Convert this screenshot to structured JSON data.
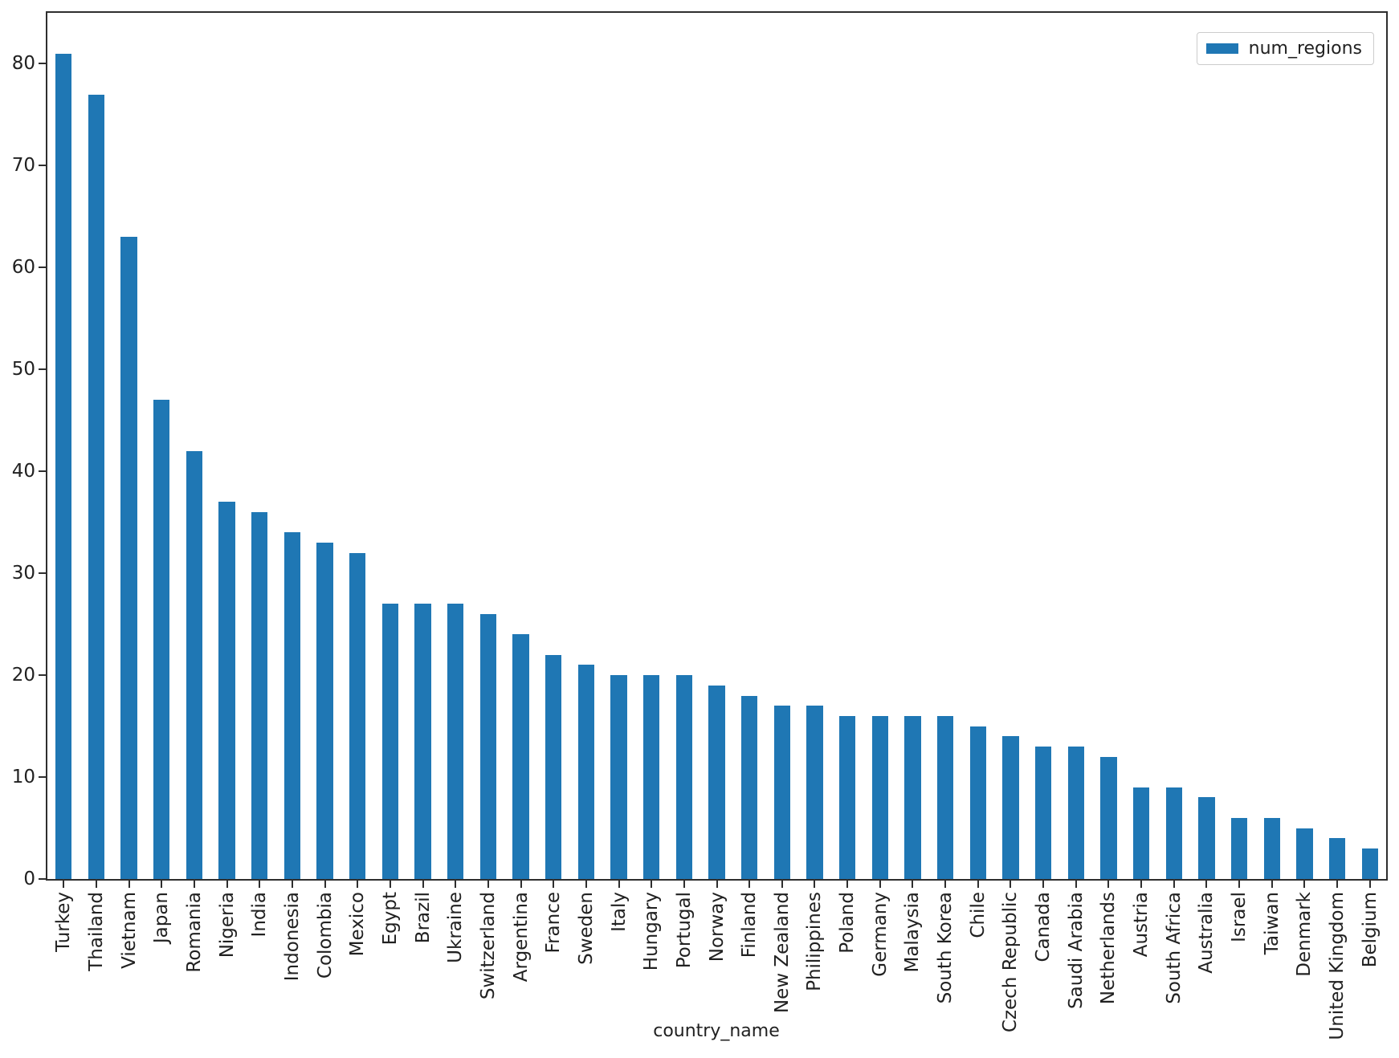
{
  "chart_data": {
    "type": "bar",
    "title": "",
    "xlabel": "country_name",
    "ylabel": "",
    "legend": {
      "label": "num_regions",
      "position": "upper right"
    },
    "colors": {
      "bar": "#1f77b4",
      "axis": "#2e2e2e",
      "text": "#212121",
      "legend_border": "#cccccc"
    },
    "ylim": [
      0,
      85
    ],
    "yticks": [
      0,
      10,
      20,
      30,
      40,
      50,
      60,
      70,
      80
    ],
    "grid": false,
    "categories": [
      "Turkey",
      "Thailand",
      "Vietnam",
      "Japan",
      "Romania",
      "Nigeria",
      "India",
      "Indonesia",
      "Colombia",
      "Mexico",
      "Egypt",
      "Brazil",
      "Ukraine",
      "Switzerland",
      "Argentina",
      "France",
      "Sweden",
      "Italy",
      "Hungary",
      "Portugal",
      "Norway",
      "Finland",
      "New Zealand",
      "Philippines",
      "Poland",
      "Germany",
      "Malaysia",
      "South Korea",
      "Chile",
      "Czech Republic",
      "Canada",
      "Saudi Arabia",
      "Netherlands",
      "Austria",
      "South Africa",
      "Australia",
      "Israel",
      "Taiwan",
      "Denmark",
      "United Kingdom",
      "Belgium"
    ],
    "series": [
      {
        "name": "num_regions",
        "values": [
          81,
          77,
          63,
          47,
          42,
          37,
          36,
          34,
          33,
          32,
          27,
          27,
          27,
          26,
          24,
          22,
          21,
          20,
          20,
          20,
          19,
          18,
          17,
          17,
          16,
          16,
          16,
          16,
          15,
          14,
          13,
          13,
          12,
          9,
          9,
          8,
          6,
          6,
          5,
          4,
          3
        ]
      }
    ]
  }
}
